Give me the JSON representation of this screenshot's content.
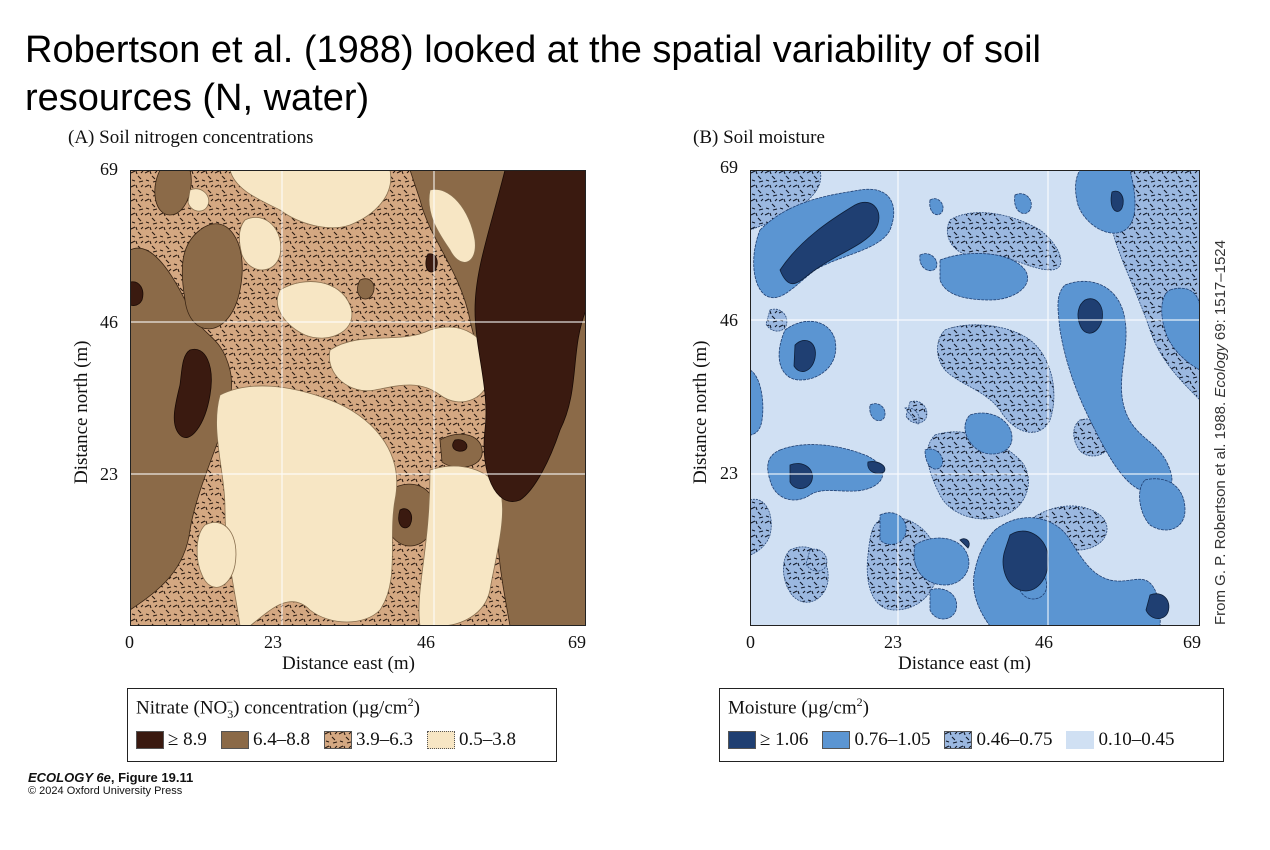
{
  "slide": {
    "title": "Robertson et al. (1988) looked at the spatial variability of soil resources (N, water)"
  },
  "panel_a": {
    "label": "(A)  Soil nitrogen concentrations",
    "x_axis_title": "Distance east (m)",
    "y_axis_title": "Distance north (m)",
    "x_ticks": [
      "0",
      "23",
      "46",
      "69"
    ],
    "y_ticks": [
      "69",
      "46",
      "23"
    ],
    "legend": {
      "title_pre": "Nitrate (NO",
      "title_sub": "3",
      "title_sup_minus": "−",
      "title_post": ") concentration (µg/cm",
      "title_sup": "2",
      "title_end": ")",
      "items": [
        {
          "label": "≥ 8.9",
          "color": "#3a1a10"
        },
        {
          "label": "6.4–8.8",
          "color": "#8b6a48"
        },
        {
          "label": "3.9–6.3",
          "color": "#d4a882"
        },
        {
          "label": "0.5–3.8",
          "color": "#f7e6c4"
        }
      ]
    }
  },
  "panel_b": {
    "label": "(B)  Soil moisture",
    "x_axis_title": "Distance east (m)",
    "y_axis_title": "Distance north (m)",
    "x_ticks": [
      "0",
      "23",
      "46",
      "69"
    ],
    "y_ticks": [
      "69",
      "46",
      "23"
    ],
    "legend": {
      "title_pre": "Moisture (µg/cm",
      "title_sup": "2",
      "title_end": ")",
      "items": [
        {
          "label": "≥ 1.06",
          "color": "#1f3f72"
        },
        {
          "label": "0.76–1.05",
          "color": "#5b95d2"
        },
        {
          "label": "0.46–0.75",
          "color": "#9bb8e0"
        },
        {
          "label": "0.10–0.45",
          "color": "#d0e0f3"
        }
      ]
    }
  },
  "credits": {
    "side_pre": "From G. P. Robertson et al. 1988. ",
    "side_journal": "Ecology",
    "side_post": " 69: 1517–1524",
    "book_title": "ECOLOGY 6e",
    "book_fig": ", Figure 19.11",
    "book_copyright": "© 2024 Oxford University Press"
  }
}
